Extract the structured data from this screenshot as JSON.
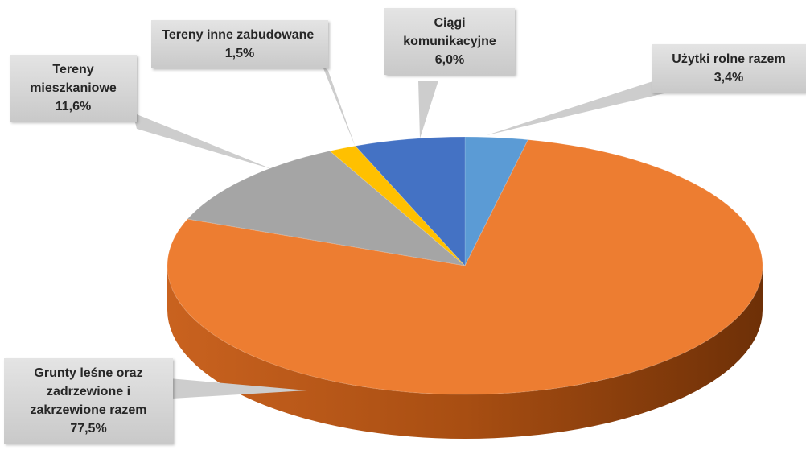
{
  "chart_data": {
    "type": "pie",
    "categories": [
      "Użytki rolne razem",
      "Grunty leśne oraz zadrzewione i zakrzewione razem",
      "Tereny mieszkaniowe",
      "Tereny inne zabudowane",
      "Ciągi komunikacyjne"
    ],
    "values": [
      3.4,
      77.5,
      11.6,
      1.5,
      6.0
    ],
    "value_labels": [
      "3,4%",
      "77,5%",
      "11,6%",
      "1,5%",
      "6,0%"
    ],
    "colors": [
      "#5b9bd5",
      "#ed7d31",
      "#a5a5a5",
      "#ffc000",
      "#4472c4"
    ]
  }
}
